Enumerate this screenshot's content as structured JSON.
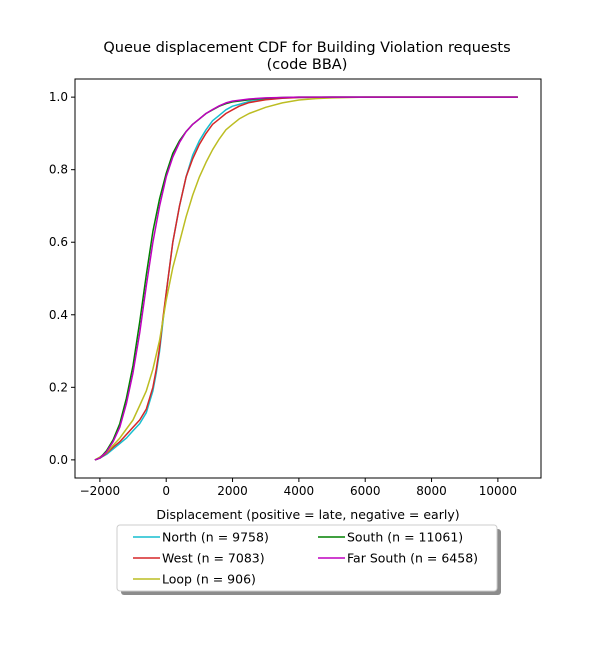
{
  "chart_data": {
    "type": "line",
    "title_line1": "Queue displacement CDF for Building Violation  requests",
    "title_line2": "(code BBA)",
    "xlabel": "Displacement (positive = late, negative = early)",
    "ylabel": "",
    "xlim": [
      -2750,
      11300
    ],
    "ylim": [
      -0.05,
      1.05
    ],
    "x_ticks": [
      -2000,
      0,
      2000,
      4000,
      6000,
      8000,
      10000
    ],
    "y_ticks": [
      0.0,
      0.2,
      0.4,
      0.6,
      0.8,
      1.0
    ],
    "x_tick_labels": [
      "−2000",
      "0",
      "2000",
      "4000",
      "6000",
      "8000",
      "10000"
    ],
    "y_tick_labels": [
      "0.0",
      "0.2",
      "0.4",
      "0.6",
      "0.8",
      "1.0"
    ],
    "grid": false,
    "legend_position": "below-center",
    "legend_columns": 2,
    "series": [
      {
        "name": "North (n = 9758)",
        "color": "#17becf",
        "x": [
          -2150,
          -2000,
          -1800,
          -1600,
          -1400,
          -1200,
          -1000,
          -800,
          -600,
          -400,
          -300,
          -200,
          -100,
          0,
          100,
          200,
          400,
          600,
          800,
          1000,
          1200,
          1400,
          1600,
          1800,
          2000,
          2200,
          2500,
          3000,
          3500,
          4000,
          5000,
          6000,
          8000,
          10600
        ],
        "y": [
          0.0,
          0.005,
          0.015,
          0.03,
          0.045,
          0.06,
          0.08,
          0.1,
          0.13,
          0.19,
          0.24,
          0.3,
          0.38,
          0.46,
          0.53,
          0.6,
          0.7,
          0.78,
          0.84,
          0.88,
          0.91,
          0.935,
          0.95,
          0.965,
          0.975,
          0.98,
          0.988,
          0.995,
          0.998,
          0.999,
          1.0,
          1.0,
          1.0,
          1.0
        ]
      },
      {
        "name": "West (n = 7083)",
        "color": "#d62728",
        "x": [
          -2150,
          -2000,
          -1800,
          -1600,
          -1400,
          -1200,
          -1000,
          -800,
          -600,
          -400,
          -300,
          -200,
          -100,
          0,
          100,
          200,
          400,
          600,
          800,
          1000,
          1200,
          1400,
          1600,
          1800,
          2000,
          2200,
          2500,
          3000,
          3500,
          4000,
          5000,
          6000,
          8000,
          10600
        ],
        "y": [
          0.0,
          0.005,
          0.018,
          0.035,
          0.05,
          0.07,
          0.09,
          0.11,
          0.14,
          0.2,
          0.25,
          0.31,
          0.39,
          0.46,
          0.53,
          0.6,
          0.7,
          0.78,
          0.83,
          0.87,
          0.9,
          0.925,
          0.94,
          0.955,
          0.965,
          0.975,
          0.985,
          0.993,
          0.997,
          0.999,
          1.0,
          1.0,
          1.0,
          1.0
        ]
      },
      {
        "name": "Loop (n = 906)",
        "color": "#bcbd22",
        "x": [
          -2150,
          -2000,
          -1800,
          -1600,
          -1400,
          -1200,
          -1000,
          -800,
          -600,
          -400,
          -200,
          0,
          200,
          400,
          600,
          800,
          1000,
          1200,
          1400,
          1600,
          1800,
          2000,
          2200,
          2500,
          3000,
          3500,
          4000,
          4500,
          5000,
          6000,
          8000,
          10600
        ],
        "y": [
          0.0,
          0.008,
          0.02,
          0.04,
          0.06,
          0.085,
          0.11,
          0.15,
          0.19,
          0.25,
          0.33,
          0.44,
          0.53,
          0.6,
          0.67,
          0.73,
          0.78,
          0.82,
          0.855,
          0.885,
          0.91,
          0.925,
          0.94,
          0.955,
          0.972,
          0.984,
          0.992,
          0.996,
          0.998,
          1.0,
          1.0,
          1.0
        ]
      },
      {
        "name": "South (n = 11061)",
        "color": "#008000",
        "x": [
          -2150,
          -2000,
          -1800,
          -1600,
          -1400,
          -1200,
          -1000,
          -800,
          -600,
          -400,
          -200,
          0,
          200,
          400,
          600,
          800,
          1000,
          1200,
          1400,
          1600,
          1800,
          2000,
          2500,
          3000,
          3500,
          4000,
          5000,
          6000,
          8000,
          10600
        ],
        "y": [
          0.0,
          0.005,
          0.025,
          0.055,
          0.1,
          0.17,
          0.26,
          0.38,
          0.51,
          0.63,
          0.72,
          0.79,
          0.845,
          0.88,
          0.905,
          0.925,
          0.94,
          0.955,
          0.965,
          0.975,
          0.982,
          0.987,
          0.993,
          0.997,
          0.999,
          1.0,
          1.0,
          1.0,
          1.0,
          1.0
        ]
      },
      {
        "name": "Far South (n = 6458)",
        "color": "#bf00bf",
        "x": [
          -2150,
          -2000,
          -1800,
          -1600,
          -1400,
          -1200,
          -1000,
          -800,
          -600,
          -400,
          -200,
          0,
          200,
          400,
          600,
          800,
          1000,
          1200,
          1400,
          1600,
          1800,
          2000,
          2500,
          3000,
          3500,
          4000,
          5000,
          6000,
          8000,
          10600
        ],
        "y": [
          0.0,
          0.005,
          0.022,
          0.05,
          0.09,
          0.155,
          0.24,
          0.35,
          0.48,
          0.6,
          0.7,
          0.78,
          0.835,
          0.875,
          0.905,
          0.925,
          0.94,
          0.955,
          0.966,
          0.976,
          0.984,
          0.989,
          0.995,
          0.998,
          0.999,
          1.0,
          1.0,
          1.0,
          1.0,
          1.0
        ]
      }
    ]
  }
}
